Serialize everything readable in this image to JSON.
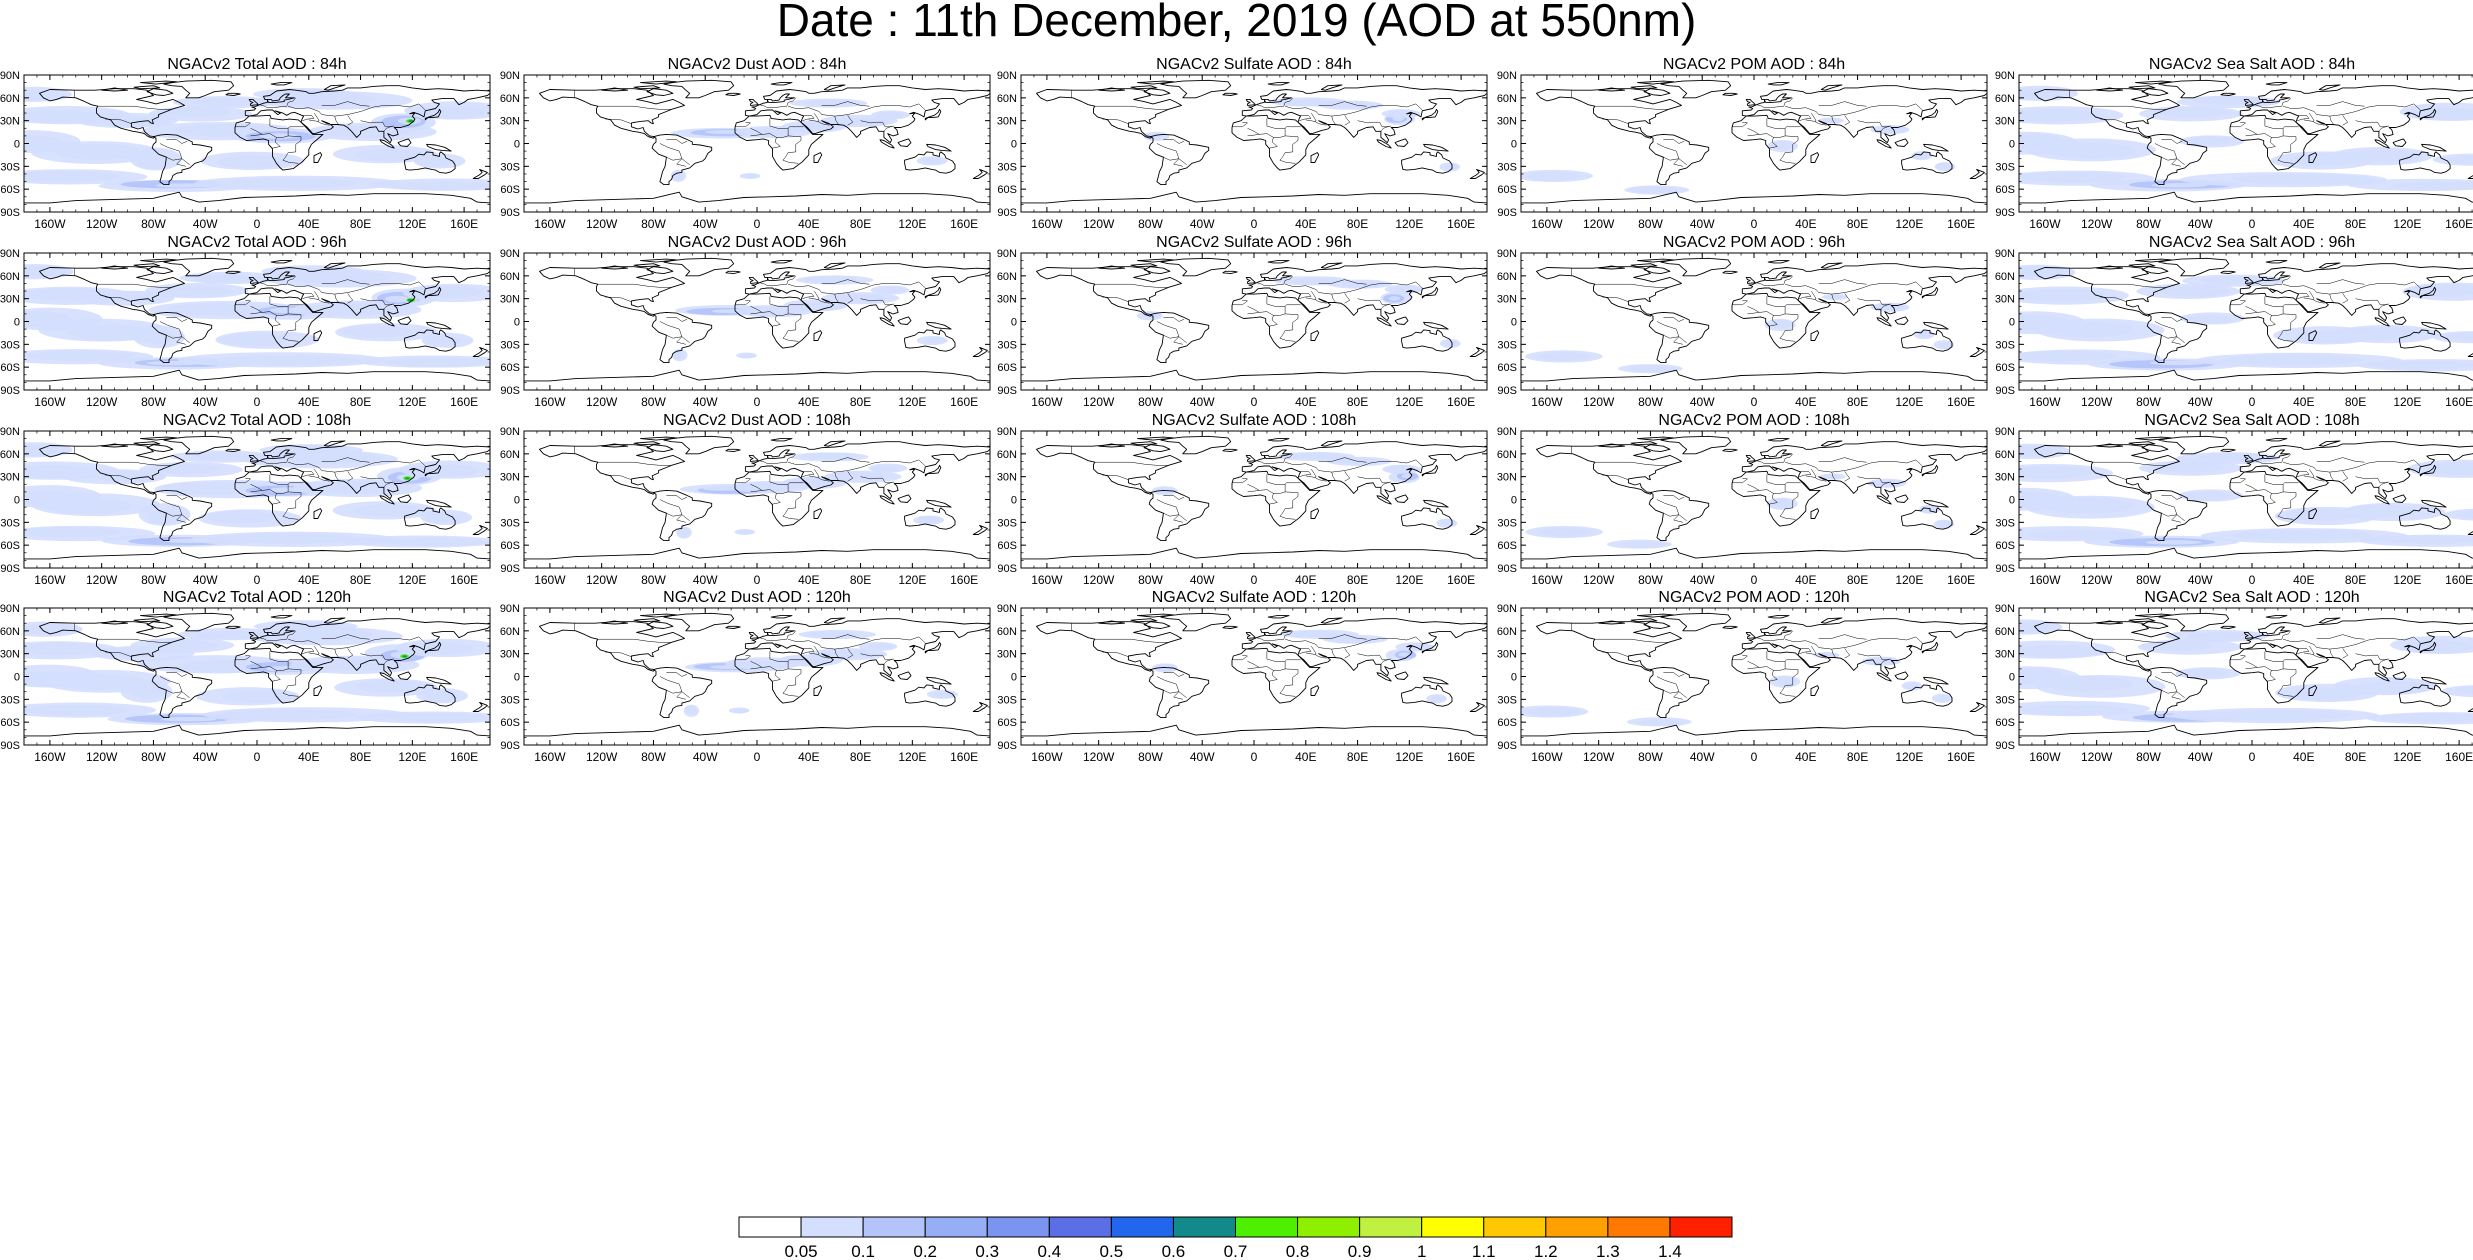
{
  "title": "Date : 11th December, 2019 (AOD at 550nm)",
  "lat_ticks": [
    "90N",
    "60N",
    "30N",
    "0",
    "30S",
    "60S",
    "90S"
  ],
  "lon_ticks": [
    "160W",
    "120W",
    "80W",
    "40W",
    "0",
    "40E",
    "80E",
    "120E",
    "160E"
  ],
  "panels": [
    [
      "NGACv2 Total AOD : 84h",
      "NGACv2 Dust AOD : 84h",
      "NGACv2 Sulfate AOD : 84h",
      "NGACv2 POM AOD : 84h",
      "NGACv2 Sea Salt AOD : 84h"
    ],
    [
      "NGACv2 Total AOD : 96h",
      "NGACv2 Dust AOD : 96h",
      "NGACv2 Sulfate AOD : 96h",
      "NGACv2 POM AOD : 96h",
      "NGACv2 Sea Salt AOD : 96h"
    ],
    [
      "NGACv2 Total AOD : 108h",
      "NGACv2 Dust AOD : 108h",
      "NGACv2 Sulfate AOD : 108h",
      "NGACv2 POM AOD : 108h",
      "NGACv2 Sea Salt AOD : 108h"
    ],
    [
      "NGACv2 Total AOD : 120h",
      "NGACv2 Dust AOD : 120h",
      "NGACv2 Sulfate AOD : 120h",
      "NGACv2 POM AOD : 120h",
      "NGACv2 Sea Salt  AOD : 120h"
    ]
  ],
  "colorbar": {
    "labels": [
      "0.05",
      "0.1",
      "0.2",
      "0.3",
      "0.4",
      "0.5",
      "0.6",
      "0.7",
      "0.8",
      "0.9",
      "1",
      "1.1",
      "1.2",
      "1.3",
      "1.4"
    ],
    "colors": [
      "#ffffff",
      "#d4defe",
      "#b4c4fa",
      "#96aef6",
      "#7a94f0",
      "#5b6ee6",
      "#2266ee",
      "#138a8a",
      "#4ef000",
      "#8ef000",
      "#c0f040",
      "#ffff00",
      "#ffc800",
      "#ffa000",
      "#ff7800",
      "#ff2000"
    ]
  }
}
